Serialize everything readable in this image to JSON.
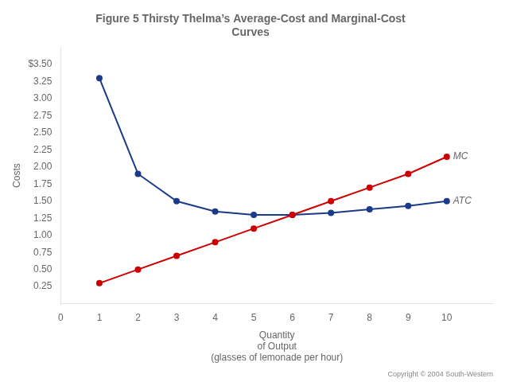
{
  "chart_data": {
    "type": "line",
    "title": "Figure 5 Thirsty Thelma’s Average-Cost and Marginal-Cost\nCurves",
    "xlabel": "Quantity\nof Output\n(glasses of lemonade per hour)",
    "ylabel": "Costs",
    "annotations": [
      "Copyright © 2004 South-Western"
    ],
    "x": [
      1,
      2,
      3,
      4,
      5,
      6,
      7,
      8,
      9,
      10
    ],
    "series": [
      {
        "name": "MC",
        "color": "#cc0000",
        "marker": "circle",
        "values": [
          0.3,
          0.5,
          0.7,
          0.9,
          1.1,
          1.3,
          1.5,
          1.7,
          1.9,
          2.15
        ]
      },
      {
        "name": "ATC",
        "color": "#1a3a8a",
        "marker": "circle",
        "values": [
          3.3,
          1.9,
          1.5,
          1.35,
          1.3,
          1.3,
          1.33,
          1.38,
          1.43,
          1.5
        ]
      }
    ],
    "xlim": [
      0,
      11.2
    ],
    "xticks": [
      0,
      1,
      2,
      3,
      4,
      5,
      6,
      7,
      8,
      9,
      10
    ],
    "ylim": [
      0,
      3.75
    ],
    "yticks": [
      0.25,
      {
        "value": 0.5,
        "label": "0.50"
      },
      0.75,
      {
        "value": 1.0,
        "label": "1.00"
      },
      1.25,
      {
        "value": 1.5,
        "label": "1.50"
      },
      1.75,
      {
        "value": 2.0,
        "label": "2.00"
      },
      2.25,
      {
        "value": 2.5,
        "label": "2.50"
      },
      2.75,
      {
        "value": 3.0,
        "label": "3.00"
      },
      3.25,
      {
        "value": 3.5,
        "label": "$3.50"
      }
    ],
    "grid": false
  }
}
